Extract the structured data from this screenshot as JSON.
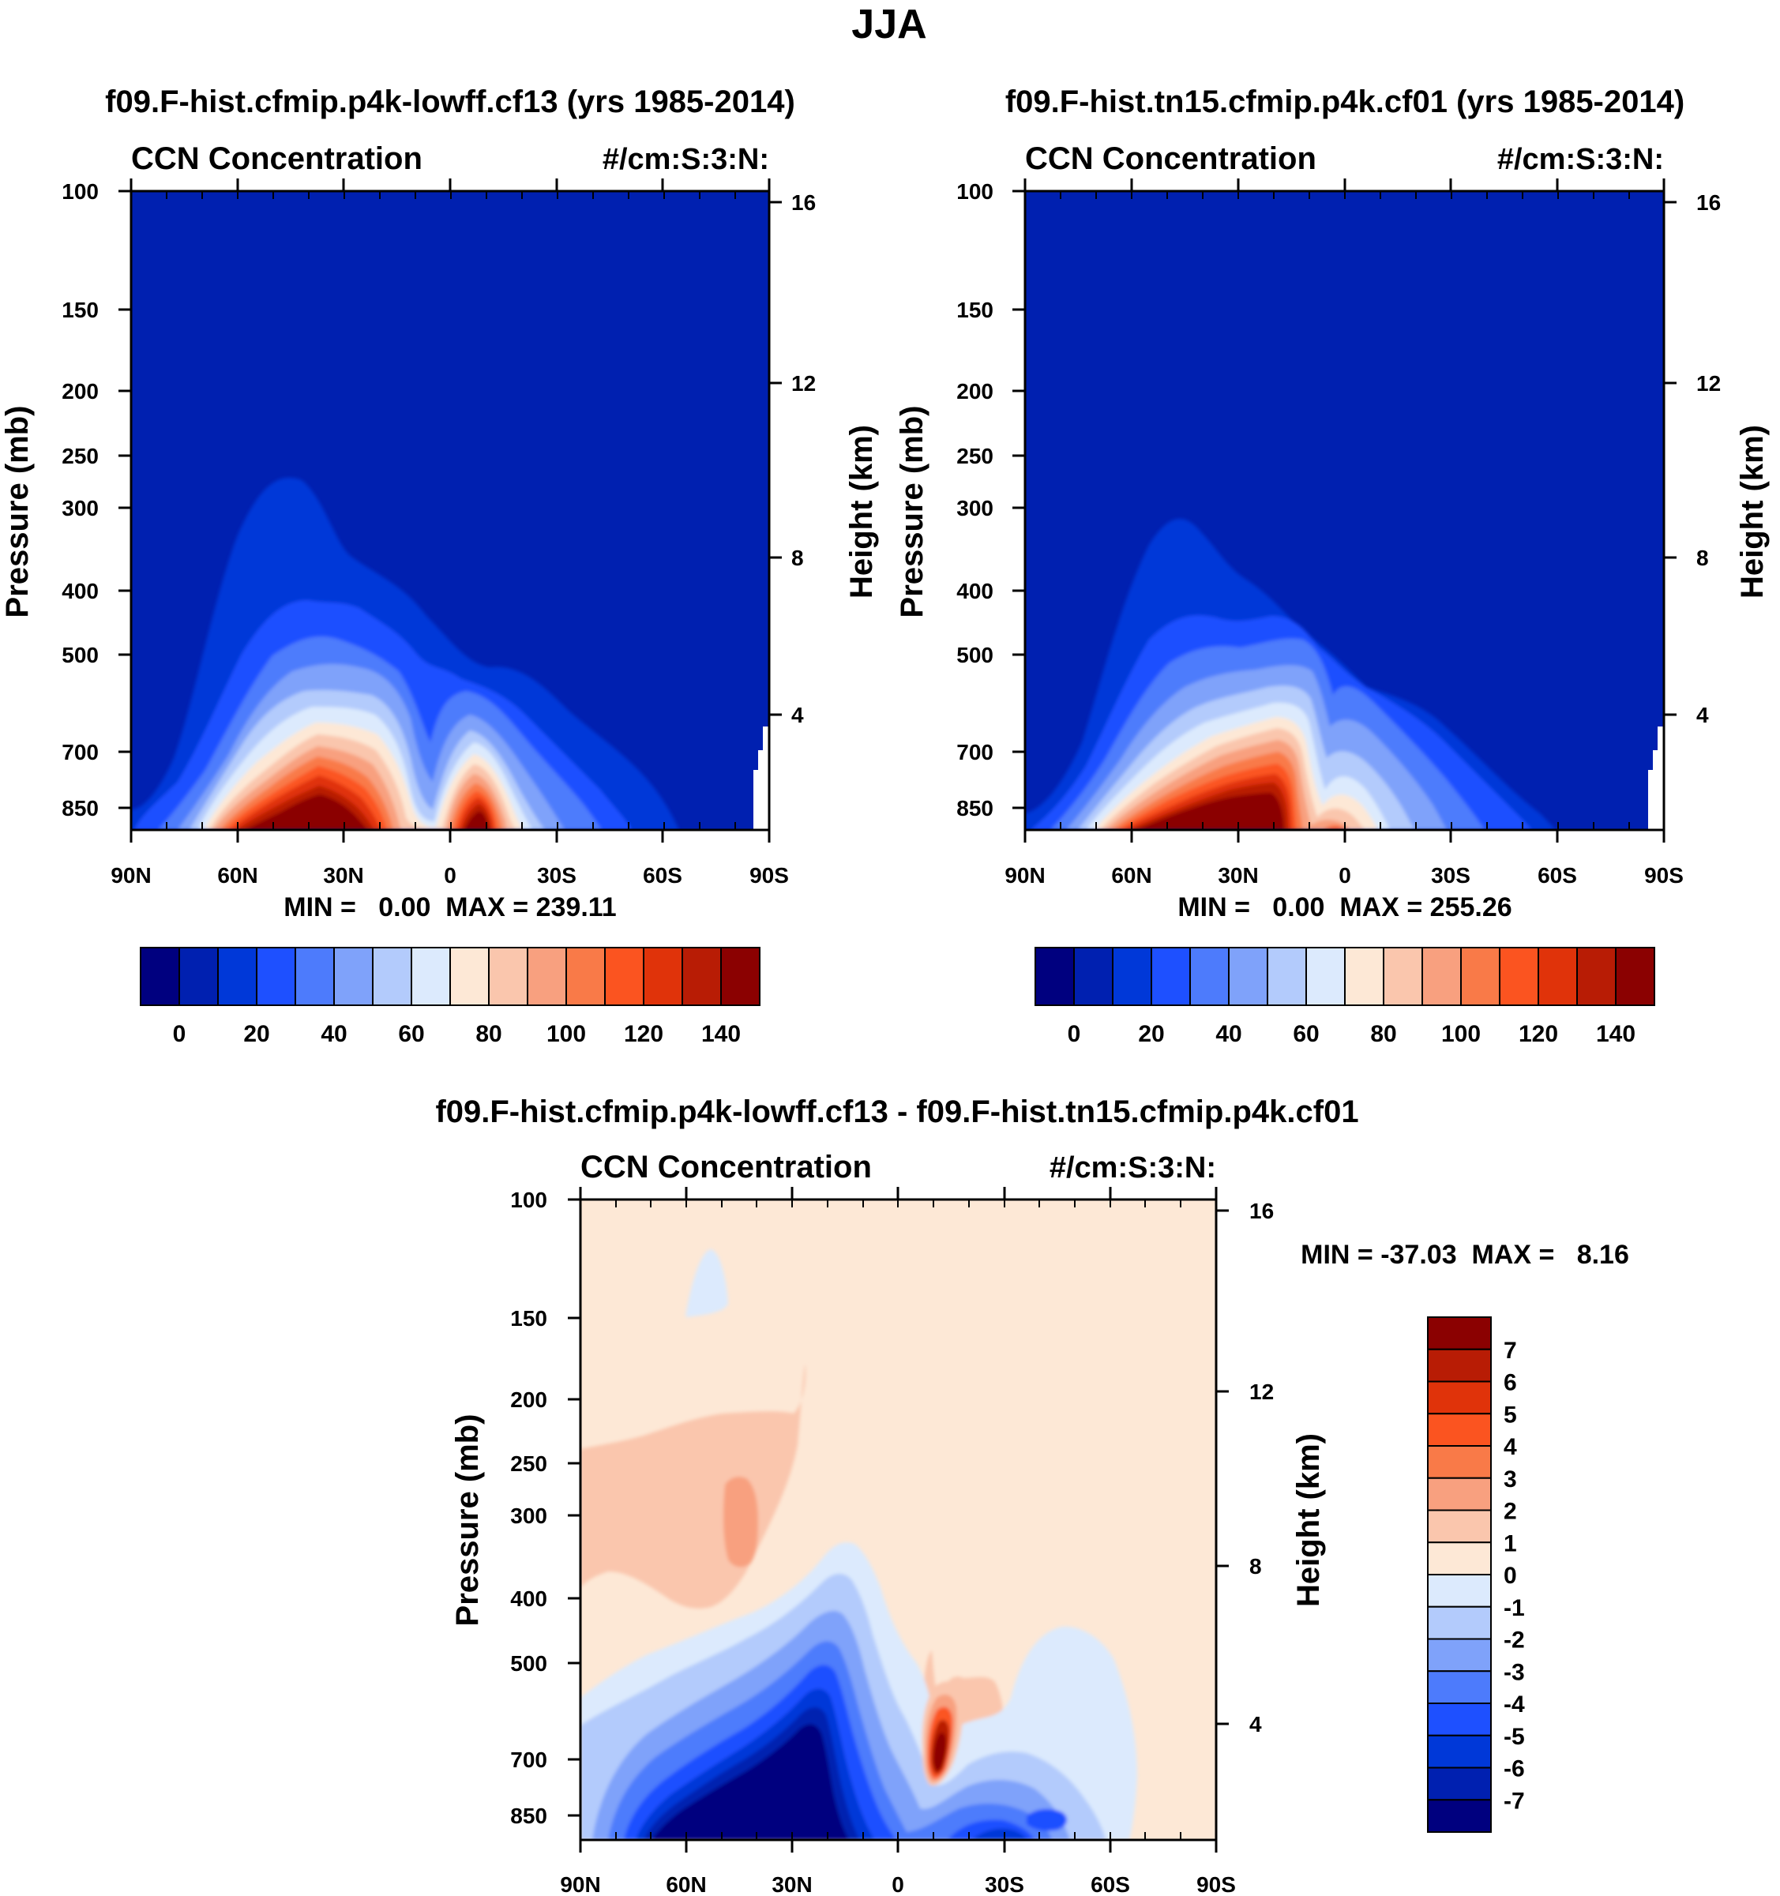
{
  "page_title": "JJA",
  "colormap_main": [
    "#00007f",
    "#0020b0",
    "#0038d8",
    "#1e50ff",
    "#4d7bfc",
    "#7fa2fa",
    "#b3cbfc",
    "#dceafd",
    "#fde8d6",
    "#fac6ad",
    "#f8a07f",
    "#f97a48",
    "#fb5420",
    "#e0330a",
    "#b81c05",
    "#8b0101"
  ],
  "colormap_diff": [
    "#00007f",
    "#0020b0",
    "#0038d8",
    "#1e50ff",
    "#4d7bfc",
    "#7fa2fa",
    "#b3cbfc",
    "#dceafd",
    "#fde8d6",
    "#fac6ad",
    "#f8a07f",
    "#f97a48",
    "#fb5420",
    "#e0330a",
    "#b81c05",
    "#8b0101"
  ],
  "chart_data": [
    {
      "type": "heatmap",
      "title": "f09.F-hist.cfmip.p4k-lowff.cf13 (yrs 1985-2014)",
      "left_label": "CCN Concentration",
      "right_label": "#/cm:S:3:N:",
      "xlabel": "",
      "ylabel": "Pressure (mb)",
      "y2label": "Height (km)",
      "x_ticks": [
        "90N",
        "60N",
        "30N",
        "0",
        "30S",
        "60S",
        "90S"
      ],
      "y_ticks": [
        "100",
        "150",
        "200",
        "250",
        "300",
        "400",
        "500",
        "700",
        "850"
      ],
      "y_tick_values": [
        100,
        150,
        200,
        250,
        300,
        400,
        500,
        700,
        850
      ],
      "y2_ticks": [
        "16",
        "12",
        "8",
        "4"
      ],
      "y2_tick_values": [
        16,
        12,
        8,
        4
      ],
      "xlim": [
        90,
        -90
      ],
      "ylim": [
        100,
        1000
      ],
      "log_y": true,
      "stats_text": "MIN =   0.00  MAX = 239.11",
      "min": 0.0,
      "max": 239.11,
      "colorbar_labels": [
        "0",
        "20",
        "40",
        "60",
        "80",
        "100",
        "120",
        "140"
      ],
      "colorbar_levels": [
        0,
        10,
        20,
        30,
        40,
        50,
        60,
        70,
        80,
        90,
        100,
        110,
        120,
        130,
        140
      ],
      "colorbar_orientation": "horizontal"
    },
    {
      "type": "heatmap",
      "title": "f09.F-hist.tn15.cfmip.p4k.cf01 (yrs 1985-2014)",
      "left_label": "CCN Concentration",
      "right_label": "#/cm:S:3:N:",
      "xlabel": "",
      "ylabel": "Pressure (mb)",
      "y2label": "Height (km)",
      "x_ticks": [
        "90N",
        "60N",
        "30N",
        "0",
        "30S",
        "60S",
        "90S"
      ],
      "y_ticks": [
        "100",
        "150",
        "200",
        "250",
        "300",
        "400",
        "500",
        "700",
        "850"
      ],
      "y_tick_values": [
        100,
        150,
        200,
        250,
        300,
        400,
        500,
        700,
        850
      ],
      "y2_ticks": [
        "16",
        "12",
        "8",
        "4"
      ],
      "y2_tick_values": [
        16,
        12,
        8,
        4
      ],
      "xlim": [
        90,
        -90
      ],
      "ylim": [
        100,
        1000
      ],
      "log_y": true,
      "stats_text": "MIN =   0.00  MAX = 255.26",
      "min": 0.0,
      "max": 255.26,
      "colorbar_labels": [
        "0",
        "20",
        "40",
        "60",
        "80",
        "100",
        "120",
        "140"
      ],
      "colorbar_levels": [
        0,
        10,
        20,
        30,
        40,
        50,
        60,
        70,
        80,
        90,
        100,
        110,
        120,
        130,
        140
      ],
      "colorbar_orientation": "horizontal"
    },
    {
      "type": "heatmap",
      "title": "f09.F-hist.cfmip.p4k-lowff.cf13 - f09.F-hist.tn15.cfmip.p4k.cf01",
      "left_label": "CCN Concentration",
      "right_label": "#/cm:S:3:N:",
      "xlabel": "",
      "ylabel": "Pressure (mb)",
      "y2label": "Height (km)",
      "x_ticks": [
        "90N",
        "60N",
        "30N",
        "0",
        "30S",
        "60S",
        "90S"
      ],
      "y_ticks": [
        "100",
        "150",
        "200",
        "250",
        "300",
        "400",
        "500",
        "700",
        "850"
      ],
      "y_tick_values": [
        100,
        150,
        200,
        250,
        300,
        400,
        500,
        700,
        850
      ],
      "y2_ticks": [
        "16",
        "12",
        "8",
        "4"
      ],
      "y2_tick_values": [
        16,
        12,
        8,
        4
      ],
      "xlim": [
        90,
        -90
      ],
      "ylim": [
        100,
        1000
      ],
      "log_y": true,
      "stats_text": "MIN = -37.03  MAX =   8.16",
      "min": -37.03,
      "max": 8.16,
      "colorbar_labels": [
        "7",
        "6",
        "5",
        "4",
        "3",
        "2",
        "1",
        "0",
        "-1",
        "-2",
        "-3",
        "-4",
        "-5",
        "-6",
        "-7"
      ],
      "colorbar_levels": [
        7,
        6,
        5,
        4,
        3,
        2,
        1,
        0,
        -1,
        -2,
        -3,
        -4,
        -5,
        -6,
        -7
      ],
      "colorbar_orientation": "vertical"
    }
  ]
}
